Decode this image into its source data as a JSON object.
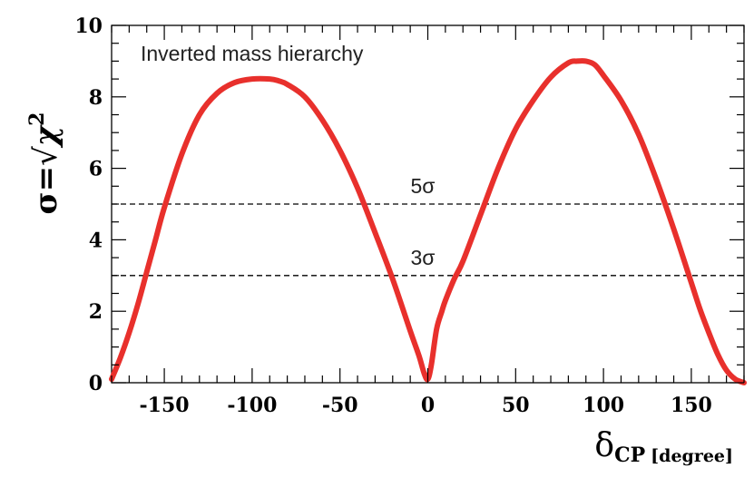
{
  "chart_data": {
    "type": "line",
    "title": "",
    "annotation": "Inverted mass hierarchy",
    "xlabel": {
      "symbol": "δ",
      "subscript": "CP",
      "unit": "[degree]"
    },
    "ylabel": {
      "lhs": "σ=",
      "radical": "√",
      "symbol": "χ",
      "exponent": "2"
    },
    "xlim": [
      -180,
      180
    ],
    "ylim": [
      0,
      10
    ],
    "xticks": [
      -150,
      -100,
      -50,
      0,
      50,
      100,
      150
    ],
    "yticks": [
      0,
      2,
      4,
      6,
      8,
      10
    ],
    "grid": false,
    "reference_lines": [
      {
        "y": 5,
        "label": "5σ",
        "style": "dashed"
      },
      {
        "y": 3,
        "label": "3σ",
        "style": "dashed"
      }
    ],
    "series": [
      {
        "color": "#e8302c",
        "x": [
          -180,
          -175,
          -170,
          -165,
          -160,
          -155,
          -150,
          -140,
          -130,
          -120,
          -110,
          -100,
          -90,
          -85,
          -80,
          -70,
          -60,
          -50,
          -40,
          -30,
          -20,
          -10,
          -5,
          -2,
          0,
          2,
          5,
          8,
          10,
          15,
          20,
          30,
          40,
          50,
          60,
          70,
          80,
          85,
          90,
          95,
          100,
          110,
          120,
          130,
          140,
          150,
          155,
          160,
          165,
          170,
          175,
          180
        ],
        "y": [
          0.1,
          0.7,
          1.4,
          2.2,
          3.1,
          4.0,
          4.9,
          6.4,
          7.5,
          8.1,
          8.4,
          8.5,
          8.5,
          8.45,
          8.35,
          8.0,
          7.35,
          6.5,
          5.45,
          4.2,
          2.9,
          1.45,
          0.75,
          0.25,
          0.1,
          0.5,
          1.5,
          2.0,
          2.3,
          2.9,
          3.4,
          4.7,
          6.0,
          7.1,
          7.9,
          8.55,
          8.95,
          9.0,
          9.0,
          8.9,
          8.6,
          7.9,
          6.95,
          5.7,
          4.3,
          2.8,
          2.05,
          1.4,
          0.8,
          0.35,
          0.1,
          0.0
        ]
      }
    ]
  },
  "colors": {
    "curve": "#e8302c",
    "axis": "#000000",
    "dashed": "#000000"
  }
}
